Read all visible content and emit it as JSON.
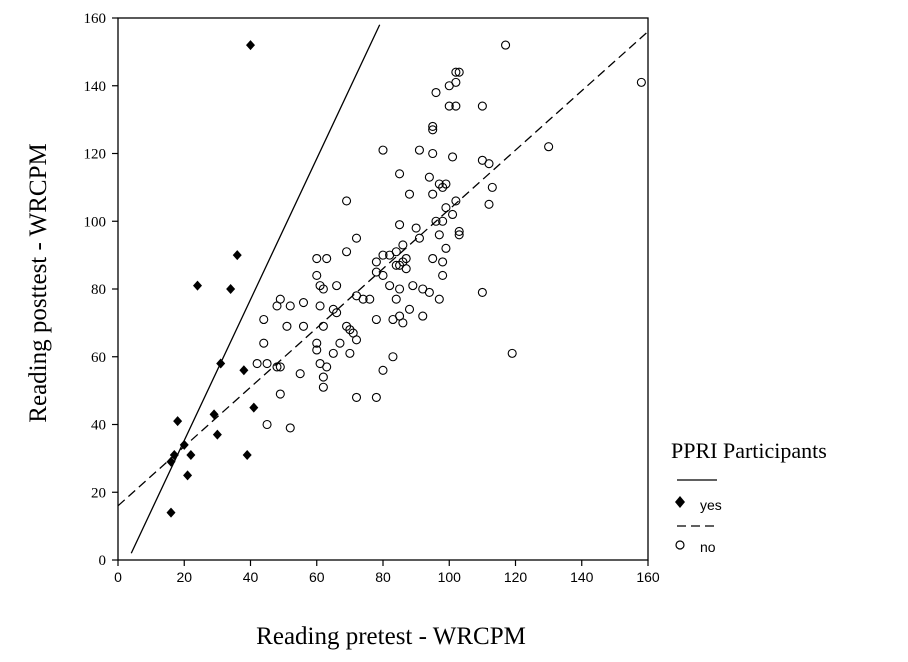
{
  "chart_data": {
    "type": "scatter",
    "title": "",
    "xlabel": "Reading pretest - WRCPM",
    "ylabel": "Reading posttest - WRCPM",
    "xlim": [
      0,
      160
    ],
    "ylim": [
      0,
      160
    ],
    "x_ticks": [
      0,
      20,
      40,
      60,
      80,
      100,
      120,
      140,
      160
    ],
    "y_ticks": [
      0,
      20,
      40,
      60,
      80,
      100,
      120,
      140,
      160
    ],
    "grid": false,
    "legend": {
      "title": "PPRI Participants",
      "placement": "right",
      "entries": [
        "yes",
        "no"
      ]
    },
    "series": [
      {
        "name": "yes",
        "marker": "filled-diamond",
        "color": "#000000",
        "points": [
          [
            40,
            152
          ],
          [
            36,
            90
          ],
          [
            24,
            81
          ],
          [
            34,
            80
          ],
          [
            31,
            58
          ],
          [
            38,
            56
          ],
          [
            41,
            45
          ],
          [
            29,
            43
          ],
          [
            18,
            41
          ],
          [
            30,
            37
          ],
          [
            20,
            34
          ],
          [
            22,
            31
          ],
          [
            39,
            31
          ],
          [
            17,
            31
          ],
          [
            16,
            29
          ],
          [
            21,
            25
          ],
          [
            16,
            14
          ]
        ]
      },
      {
        "name": "no",
        "marker": "open-circle",
        "color": "#000000",
        "points": [
          [
            117,
            152
          ],
          [
            158,
            141
          ],
          [
            102,
            144
          ],
          [
            103,
            144
          ],
          [
            102,
            141
          ],
          [
            96,
            138
          ],
          [
            100,
            140
          ],
          [
            100,
            134
          ],
          [
            102,
            134
          ],
          [
            110,
            134
          ],
          [
            95,
            128
          ],
          [
            95,
            127
          ],
          [
            80,
            121
          ],
          [
            91,
            121
          ],
          [
            95,
            120
          ],
          [
            101,
            119
          ],
          [
            110,
            118
          ],
          [
            112,
            117
          ],
          [
            130,
            122
          ],
          [
            85,
            114
          ],
          [
            94,
            113
          ],
          [
            97,
            111
          ],
          [
            98,
            110
          ],
          [
            99,
            111
          ],
          [
            113,
            110
          ],
          [
            88,
            108
          ],
          [
            95,
            108
          ],
          [
            102,
            106
          ],
          [
            112,
            105
          ],
          [
            69,
            106
          ],
          [
            99,
            104
          ],
          [
            96,
            100
          ],
          [
            101,
            102
          ],
          [
            98,
            100
          ],
          [
            103,
            97
          ],
          [
            103,
            96
          ],
          [
            90,
            98
          ],
          [
            97,
            96
          ],
          [
            85,
            99
          ],
          [
            72,
            95
          ],
          [
            91,
            95
          ],
          [
            86,
            93
          ],
          [
            84,
            91
          ],
          [
            99,
            92
          ],
          [
            60,
            89
          ],
          [
            63,
            89
          ],
          [
            87,
            89
          ],
          [
            95,
            89
          ],
          [
            69,
            91
          ],
          [
            80,
            90
          ],
          [
            82,
            90
          ],
          [
            78,
            88
          ],
          [
            86,
            88
          ],
          [
            98,
            88
          ],
          [
            84,
            87
          ],
          [
            85,
            87
          ],
          [
            87,
            86
          ],
          [
            78,
            85
          ],
          [
            80,
            84
          ],
          [
            60,
            84
          ],
          [
            98,
            84
          ],
          [
            61,
            81
          ],
          [
            62,
            80
          ],
          [
            66,
            81
          ],
          [
            82,
            81
          ],
          [
            89,
            81
          ],
          [
            85,
            80
          ],
          [
            92,
            80
          ],
          [
            94,
            79
          ],
          [
            97,
            77
          ],
          [
            110,
            79
          ],
          [
            56,
            76
          ],
          [
            49,
            77
          ],
          [
            48,
            75
          ],
          [
            52,
            75
          ],
          [
            61,
            75
          ],
          [
            65,
            74
          ],
          [
            72,
            78
          ],
          [
            74,
            77
          ],
          [
            76,
            77
          ],
          [
            84,
            77
          ],
          [
            88,
            74
          ],
          [
            83,
            71
          ],
          [
            86,
            70
          ],
          [
            85,
            72
          ],
          [
            92,
            72
          ],
          [
            78,
            71
          ],
          [
            66,
            73
          ],
          [
            69,
            69
          ],
          [
            62,
            69
          ],
          [
            56,
            69
          ],
          [
            44,
            71
          ],
          [
            51,
            69
          ],
          [
            70,
            68
          ],
          [
            71,
            67
          ],
          [
            60,
            64
          ],
          [
            60,
            62
          ],
          [
            67,
            64
          ],
          [
            72,
            65
          ],
          [
            44,
            64
          ],
          [
            65,
            61
          ],
          [
            70,
            61
          ],
          [
            42,
            58
          ],
          [
            45,
            58
          ],
          [
            61,
            58
          ],
          [
            83,
            60
          ],
          [
            119,
            61
          ],
          [
            49,
            57
          ],
          [
            48,
            57
          ],
          [
            63,
            57
          ],
          [
            80,
            56
          ],
          [
            55,
            55
          ],
          [
            62,
            54
          ],
          [
            62,
            51
          ],
          [
            49,
            49
          ],
          [
            72,
            48
          ],
          [
            78,
            48
          ],
          [
            45,
            40
          ],
          [
            52,
            39
          ]
        ]
      }
    ],
    "reference_lines": [
      {
        "series": "yes",
        "style": "solid",
        "from": [
          4,
          2
        ],
        "to": [
          79,
          158
        ]
      },
      {
        "series": "no",
        "style": "dashed",
        "from": [
          0,
          16
        ],
        "to": [
          160,
          156
        ]
      }
    ]
  }
}
